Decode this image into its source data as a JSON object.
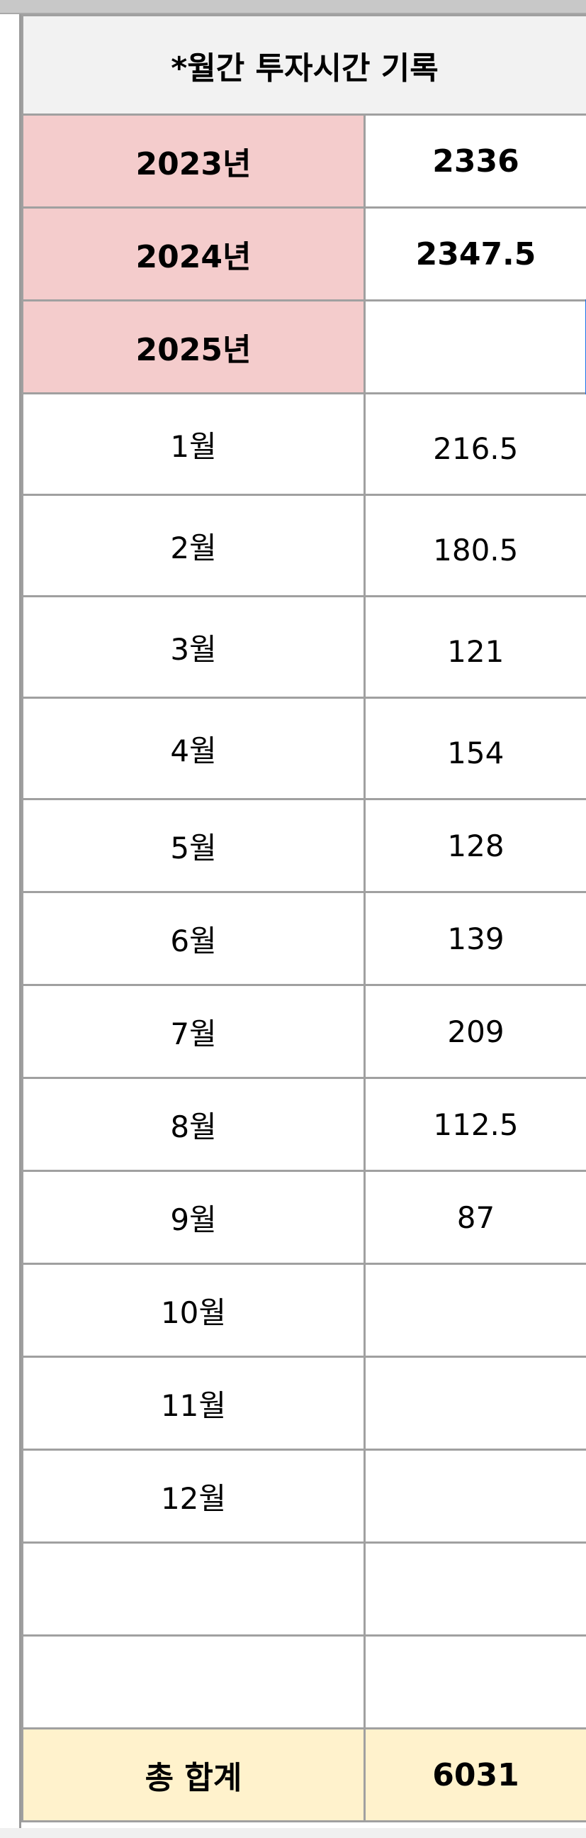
{
  "title": "*월간 투자시간 기록",
  "years": [
    {
      "label": "2023년",
      "value": "2336"
    },
    {
      "label": "2024년",
      "value": "2347.5"
    },
    {
      "label": "2025년",
      "value": ""
    }
  ],
  "months": [
    {
      "label": "1월",
      "value": "216.5"
    },
    {
      "label": "2월",
      "value": "180.5"
    },
    {
      "label": "3월",
      "value": "121"
    },
    {
      "label": "4월",
      "value": "154"
    },
    {
      "label": "5월",
      "value": "128"
    },
    {
      "label": "6월",
      "value": "139"
    },
    {
      "label": "7월",
      "value": "209"
    },
    {
      "label": "8월",
      "value": "112.5"
    },
    {
      "label": "9월",
      "value": "87"
    },
    {
      "label": "10월",
      "value": ""
    },
    {
      "label": "11월",
      "value": ""
    },
    {
      "label": "12월",
      "value": ""
    }
  ],
  "total": {
    "label": "총 합계",
    "value": "6031"
  },
  "colors": {
    "year_fill": "#f4cccc",
    "total_fill": "#fff2cc",
    "header_fill": "#f2f2f2",
    "selection": "#1a73e8"
  }
}
